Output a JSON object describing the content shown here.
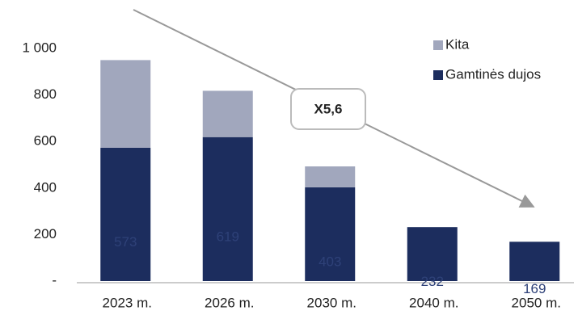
{
  "chart_data": {
    "type": "stacked_bar",
    "categories": [
      "2023 m.",
      "2026 m.",
      "2030 m.",
      "2040 m.",
      "2050 m."
    ],
    "series": [
      {
        "name": "Gamtinės dujos",
        "color": "#1c2d5e",
        "values": [
          573,
          619,
          403,
          232,
          169
        ]
      },
      {
        "name": "Kita",
        "color": "#a1a7bd",
        "values": [
          377,
          199,
          90,
          0,
          0
        ]
      }
    ],
    "ylim": [
      0,
      1000
    ],
    "yticks": [
      {
        "value": 0,
        "label": "-"
      },
      200,
      400,
      600,
      800,
      {
        "value": 1000,
        "label": "1 000"
      }
    ],
    "annotation": "X5,6",
    "legend": "top-right"
  }
}
